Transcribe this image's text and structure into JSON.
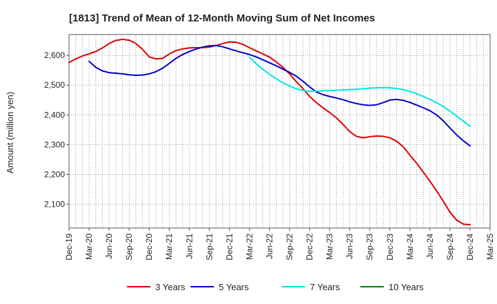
{
  "chart_data": {
    "type": "line",
    "title": "[1813]  Trend of Mean of 12-Month Moving Sum of Net Incomes",
    "xlabel": "",
    "ylabel": "Amount (million yen)",
    "ylim": [
      2020,
      2670
    ],
    "yticks": [
      2100,
      2200,
      2300,
      2400,
      2500,
      2600
    ],
    "ytick_labels": [
      "2,100",
      "2,200",
      "2,300",
      "2,400",
      "2,500",
      "2,600"
    ],
    "xticks": [
      "2019-12",
      "2020-03",
      "2020-06",
      "2020-09",
      "2020-12",
      "2021-03",
      "2021-06",
      "2021-09",
      "2021-12",
      "2022-03",
      "2022-06",
      "2022-09",
      "2022-12",
      "2023-03",
      "2023-06",
      "2023-09",
      "2023-12",
      "2024-03",
      "2024-06",
      "2024-09",
      "2024-12",
      "2025-03"
    ],
    "xtick_labels": [
      "Dec-19",
      "Mar-20",
      "Jun-20",
      "Sep-20",
      "Dec-20",
      "Mar-21",
      "Jun-21",
      "Sep-21",
      "Dec-21",
      "Mar-22",
      "Jun-22",
      "Sep-22",
      "Dec-22",
      "Mar-23",
      "Jun-23",
      "Sep-23",
      "Dec-23",
      "Mar-24",
      "Jun-24",
      "Sep-24",
      "Dec-24",
      "Mar-25"
    ],
    "grid": true,
    "legend_position": "bottom",
    "series": [
      {
        "name": "3 Years",
        "color": "#dd0000",
        "x": [
          "2019-12",
          "2020-01",
          "2020-02",
          "2020-03",
          "2020-04",
          "2020-05",
          "2020-06",
          "2020-07",
          "2020-08",
          "2020-09",
          "2020-10",
          "2020-11",
          "2020-12",
          "2021-01",
          "2021-02",
          "2021-03",
          "2021-04",
          "2021-05",
          "2021-06",
          "2021-07",
          "2021-08",
          "2021-09",
          "2021-10",
          "2021-11",
          "2021-12",
          "2022-01",
          "2022-02",
          "2022-03",
          "2022-04",
          "2022-05",
          "2022-06",
          "2022-07",
          "2022-08",
          "2022-09",
          "2022-10",
          "2022-11",
          "2022-12",
          "2023-01",
          "2023-02",
          "2023-03",
          "2023-04",
          "2023-05",
          "2023-06",
          "2023-07",
          "2023-08",
          "2023-09",
          "2023-10",
          "2023-11",
          "2023-12",
          "2024-01",
          "2024-02",
          "2024-03",
          "2024-04",
          "2024-05",
          "2024-06",
          "2024-07",
          "2024-08",
          "2024-09",
          "2024-10",
          "2024-11",
          "2024-12"
        ],
        "values": [
          2576,
          2588,
          2598,
          2605,
          2613,
          2625,
          2640,
          2650,
          2654,
          2651,
          2640,
          2620,
          2595,
          2588,
          2590,
          2605,
          2616,
          2622,
          2625,
          2626,
          2626,
          2628,
          2633,
          2640,
          2645,
          2644,
          2637,
          2626,
          2615,
          2605,
          2594,
          2578,
          2560,
          2538,
          2512,
          2488,
          2462,
          2441,
          2424,
          2408,
          2390,
          2368,
          2344,
          2328,
          2323,
          2327,
          2329,
          2328,
          2323,
          2312,
          2293,
          2265,
          2238,
          2208,
          2177,
          2145,
          2110,
          2073,
          2046,
          2033,
          2031
        ]
      },
      {
        "name": "5 Years",
        "color": "#0000cc",
        "x": [
          "2020-03",
          "2020-04",
          "2020-05",
          "2020-06",
          "2020-07",
          "2020-08",
          "2020-09",
          "2020-10",
          "2020-11",
          "2020-12",
          "2021-01",
          "2021-02",
          "2021-03",
          "2021-04",
          "2021-05",
          "2021-06",
          "2021-07",
          "2021-08",
          "2021-09",
          "2021-10",
          "2021-11",
          "2021-12",
          "2022-01",
          "2022-02",
          "2022-03",
          "2022-04",
          "2022-05",
          "2022-06",
          "2022-07",
          "2022-08",
          "2022-09",
          "2022-10",
          "2022-11",
          "2022-12",
          "2023-01",
          "2023-02",
          "2023-03",
          "2023-04",
          "2023-05",
          "2023-06",
          "2023-07",
          "2023-08",
          "2023-09",
          "2023-10",
          "2023-11",
          "2023-12",
          "2024-01",
          "2024-02",
          "2024-03",
          "2024-04",
          "2024-05",
          "2024-06",
          "2024-07",
          "2024-08",
          "2024-09",
          "2024-10",
          "2024-11",
          "2024-12"
        ],
        "values": [
          2580,
          2560,
          2548,
          2542,
          2540,
          2538,
          2535,
          2533,
          2534,
          2538,
          2545,
          2557,
          2573,
          2590,
          2603,
          2613,
          2621,
          2628,
          2632,
          2633,
          2629,
          2622,
          2615,
          2609,
          2603,
          2595,
          2585,
          2575,
          2565,
          2554,
          2543,
          2530,
          2513,
          2494,
          2477,
          2468,
          2462,
          2457,
          2451,
          2444,
          2438,
          2434,
          2432,
          2434,
          2441,
          2450,
          2452,
          2449,
          2442,
          2433,
          2424,
          2414,
          2400,
          2380,
          2356,
          2333,
          2313,
          2296
        ]
      },
      {
        "name": "7 Years",
        "color": "#00e5e5",
        "x": [
          "2022-03",
          "2022-04",
          "2022-05",
          "2022-06",
          "2022-07",
          "2022-08",
          "2022-09",
          "2022-10",
          "2022-11",
          "2022-12",
          "2023-01",
          "2023-02",
          "2023-03",
          "2023-04",
          "2023-05",
          "2023-06",
          "2023-07",
          "2023-08",
          "2023-09",
          "2023-10",
          "2023-11",
          "2023-12",
          "2024-01",
          "2024-02",
          "2024-03",
          "2024-04",
          "2024-05",
          "2024-06",
          "2024-07",
          "2024-08",
          "2024-09",
          "2024-10",
          "2024-11",
          "2024-12"
        ],
        "values": [
          2594,
          2572,
          2553,
          2536,
          2522,
          2508,
          2497,
          2488,
          2482,
          2479,
          2480,
          2481,
          2482,
          2483,
          2484,
          2485,
          2486,
          2488,
          2490,
          2491,
          2492,
          2491,
          2489,
          2485,
          2479,
          2471,
          2462,
          2452,
          2441,
          2428,
          2412,
          2396,
          2379,
          2362
        ]
      },
      {
        "name": "10 Years",
        "color": "#008000",
        "x": [],
        "values": []
      }
    ]
  }
}
